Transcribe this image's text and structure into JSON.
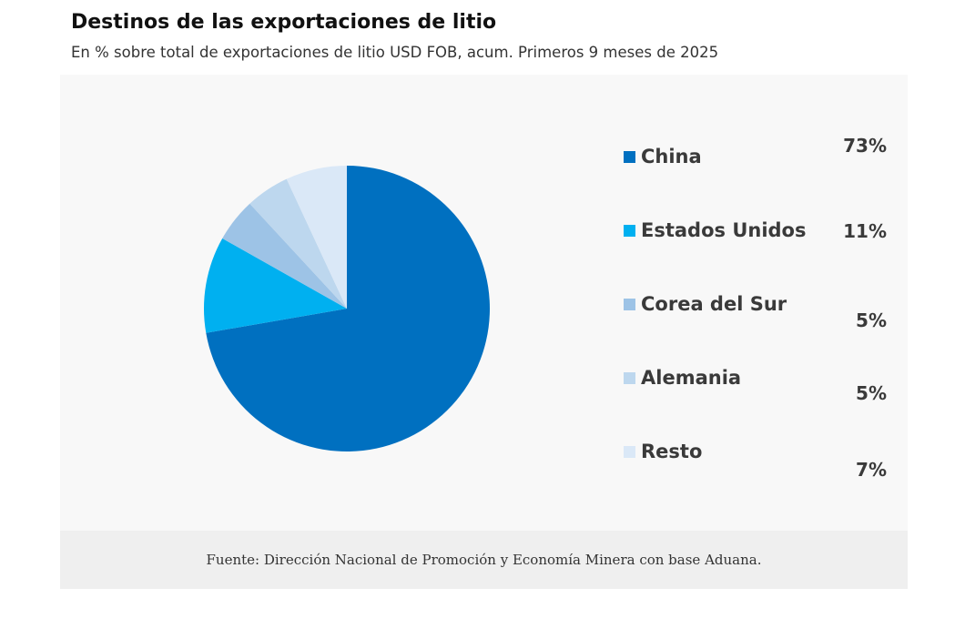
{
  "chart_data": {
    "type": "pie",
    "title": "Destinos de las exportaciones de litio",
    "subtitle": "En % sobre total de exportaciones de litio USD FOB, acum. Primeros 9 meses de  2025",
    "categories": [
      "China",
      "Estados Unidos",
      "Corea del Sur",
      "Alemania",
      "Resto"
    ],
    "values": [
      73,
      11,
      5,
      5,
      7
    ],
    "labels": [
      "73%",
      "11%",
      "5%",
      "5%",
      "7%"
    ],
    "colors": [
      "#0070C0",
      "#00B0F0",
      "#9DC3E6",
      "#BDD7EE",
      "#DAE8F7"
    ],
    "legend": "right",
    "source": "Fuente: Dirección Nacional de Promoción y Economía Minera con base Aduana."
  }
}
